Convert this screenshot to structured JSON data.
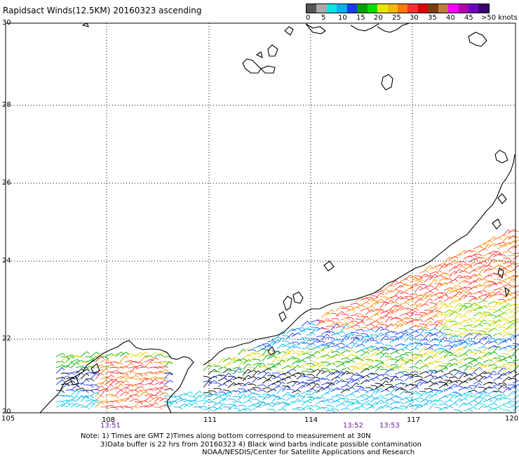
{
  "title": "Rapidsact Winds(12.5KM) 20160323 ascending",
  "legend": {
    "colors": [
      "#555555",
      "#aaaaaa",
      "#00e6e6",
      "#00b0f0",
      "#1a3cf0",
      "#00a000",
      "#00e000",
      "#e6e600",
      "#f5b800",
      "#ff7a00",
      "#ff3030",
      "#e00000",
      "#7a3d10",
      "#c07a3a",
      "#ff00ff",
      "#b000b0",
      "#7000c0",
      "#3a0070"
    ],
    "labels": [
      "0",
      "5",
      "10",
      "15",
      "20",
      "25",
      "30",
      "35",
      "40",
      "45",
      ">50 knots"
    ]
  },
  "axes": {
    "lat_labels": [
      "30",
      "28",
      "26",
      "24",
      "22",
      "20"
    ],
    "lon_labels": [
      "105",
      "108",
      "111",
      "114",
      "117",
      "120"
    ]
  },
  "times": [
    "13:51",
    "13:52",
    "13:53"
  ],
  "notes": {
    "line1": "Note: 1) Times are GMT 2)Times along bottom correspond to measurement at 30N",
    "line2": "3)Data buffer is 22 hrs from 20160323 4) Black wind barbs indicate possible contamination",
    "line3": "NOAA/NESDIS/Center for Satellite Applications and Research"
  }
}
